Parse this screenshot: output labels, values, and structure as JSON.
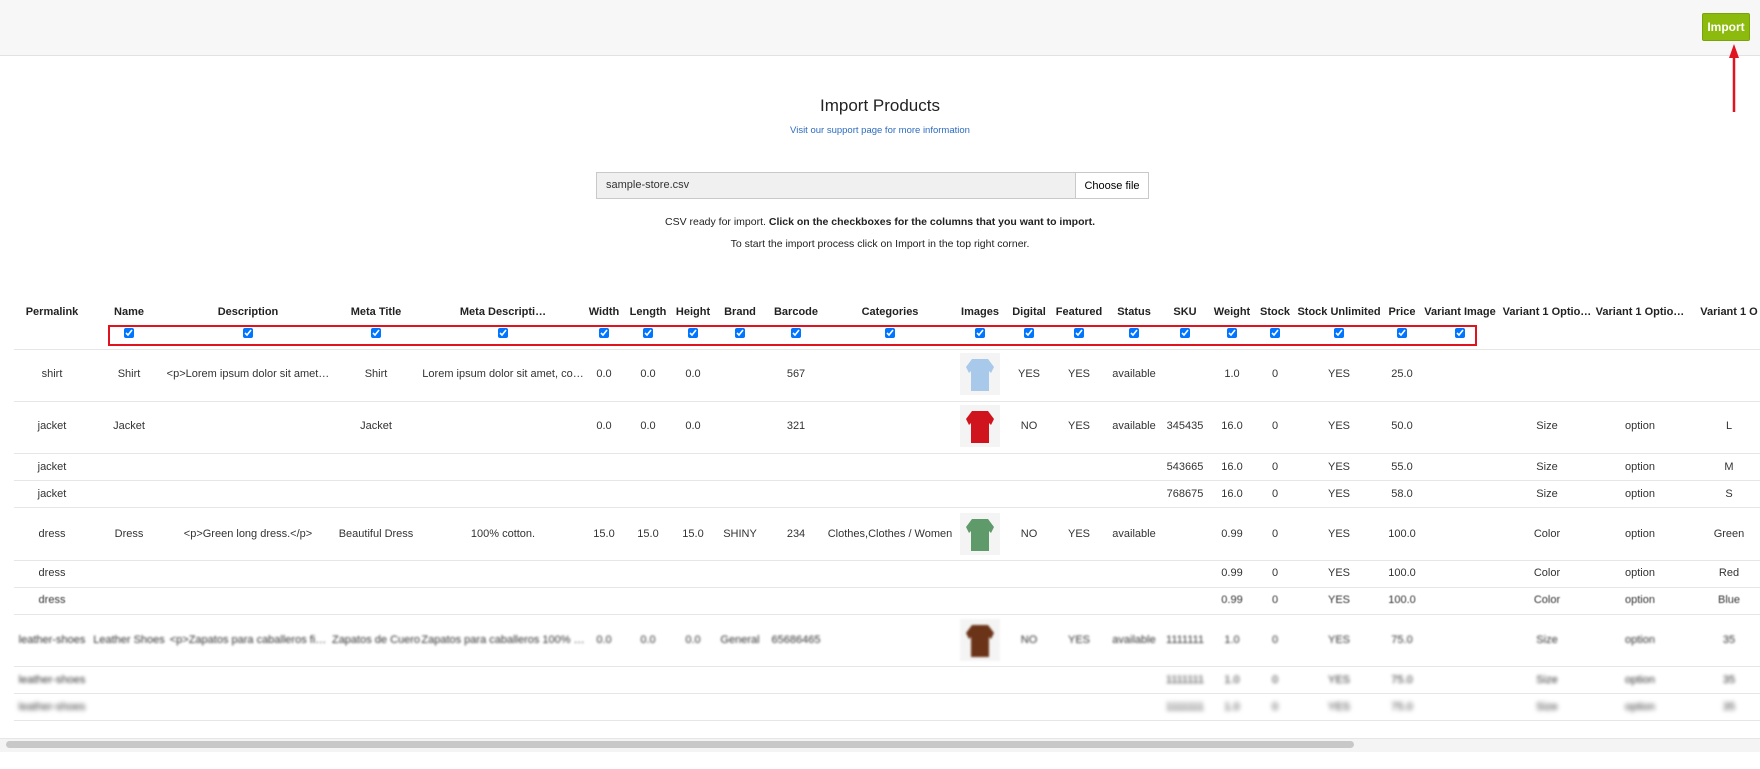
{
  "header": {
    "button": "Import"
  },
  "title": "Import Products",
  "support_link": "Visit our support page for more information",
  "file_input": {
    "filename": "sample-store.csv",
    "button": "Choose file"
  },
  "instructions": {
    "line1": {
      "text": "CSV ready for import.",
      "bold": "Click on the checkboxes for the columns that you want to import."
    },
    "line2": "To start the import process click on Import in the top right corner."
  },
  "table": {
    "columns": [
      {
        "label": "Permalink",
        "checkbox": false
      },
      {
        "label": "Name",
        "checkbox": true
      },
      {
        "label": "Description",
        "checkbox": true
      },
      {
        "label": "Meta Title",
        "checkbox": true
      },
      {
        "label": "Meta Descripti…",
        "checkbox": true
      },
      {
        "label": "Width",
        "checkbox": true
      },
      {
        "label": "Length",
        "checkbox": true
      },
      {
        "label": "Height",
        "checkbox": true
      },
      {
        "label": "Brand",
        "checkbox": true
      },
      {
        "label": "Barcode",
        "checkbox": true
      },
      {
        "label": "Categories",
        "checkbox": true
      },
      {
        "label": "Images",
        "checkbox": true
      },
      {
        "label": "Digital",
        "checkbox": true
      },
      {
        "label": "Featured",
        "checkbox": true
      },
      {
        "label": "Status",
        "checkbox": true
      },
      {
        "label": "SKU",
        "checkbox": true
      },
      {
        "label": "Weight",
        "checkbox": true
      },
      {
        "label": "Stock",
        "checkbox": true
      },
      {
        "label": "Stock Unlimited",
        "checkbox": true
      },
      {
        "label": "Price",
        "checkbox": true
      },
      {
        "label": "Variant Image",
        "checkbox": true
      },
      {
        "label": "Variant 1 Optio…",
        "checkbox": false
      },
      {
        "label": "Variant 1 Optio…",
        "checkbox": false
      },
      {
        "label": "Variant 1 O",
        "checkbox": false
      }
    ],
    "rows": [
      {
        "cells": [
          "shirt",
          "Shirt",
          "<p>Lorem ipsum dolor sit amet…",
          "Shirt",
          "Lorem ipsum dolor sit amet, co…",
          "0.0",
          "0.0",
          "0.0",
          null,
          "567",
          null,
          null,
          "YES",
          "YES",
          "available",
          null,
          "1.0",
          "0",
          "YES",
          "25.0",
          null,
          null,
          null,
          null
        ],
        "image": "#a8c9ea",
        "blur": 0
      },
      {
        "cells": [
          "jacket",
          "Jacket",
          null,
          "Jacket",
          null,
          "0.0",
          "0.0",
          "0.0",
          null,
          "321",
          null,
          null,
          "NO",
          "YES",
          "available",
          "345435",
          "16.0",
          "0",
          "YES",
          "50.0",
          null,
          "Size",
          "option",
          "L"
        ],
        "image": "#d0141e",
        "blur": 0
      },
      {
        "cells": [
          "jacket",
          null,
          null,
          null,
          null,
          null,
          null,
          null,
          null,
          null,
          null,
          null,
          null,
          null,
          null,
          "543665",
          "16.0",
          "0",
          "YES",
          "55.0",
          null,
          "Size",
          "option",
          "M"
        ],
        "blur": 0
      },
      {
        "cells": [
          "jacket",
          null,
          null,
          null,
          null,
          null,
          null,
          null,
          null,
          null,
          null,
          null,
          null,
          null,
          null,
          "768675",
          "16.0",
          "0",
          "YES",
          "58.0",
          null,
          "Size",
          "option",
          "S"
        ],
        "blur": 0
      },
      {
        "cells": [
          "dress",
          "Dress",
          "<p>Green long dress.</p>",
          "Beautiful Dress",
          "100% cotton.",
          "15.0",
          "15.0",
          "15.0",
          "SHINY",
          "234",
          "Clothes,Clothes / Women",
          null,
          "NO",
          "YES",
          "available",
          null,
          "0.99",
          "0",
          "YES",
          "100.0",
          null,
          "Color",
          "option",
          "Green"
        ],
        "image": "#5f9a6a",
        "blur": 0
      },
      {
        "cells": [
          "dress",
          null,
          null,
          null,
          null,
          null,
          null,
          null,
          null,
          null,
          null,
          null,
          null,
          null,
          null,
          null,
          "0.99",
          "0",
          "YES",
          "100.0",
          null,
          "Color",
          "option",
          "Red"
        ],
        "blur": 0.3
      },
      {
        "cells": [
          "dress",
          null,
          null,
          null,
          null,
          null,
          null,
          null,
          null,
          null,
          null,
          null,
          null,
          null,
          null,
          null,
          "0.99",
          "0",
          "YES",
          "100.0",
          null,
          "Color",
          "option",
          "Blue"
        ],
        "blur": 0.5
      },
      {
        "cells": [
          "leather-shoes",
          "Leather Shoes",
          "<p>Zapatos para caballeros fi…",
          "Zapatos de Cuero",
          "Zapatos para caballeros 100% …",
          "0.0",
          "0.0",
          "0.0",
          "General",
          "65686465",
          null,
          null,
          "NO",
          "YES",
          "available",
          "1111111",
          "1.0",
          "0",
          "YES",
          "75.0",
          null,
          "Size",
          "option",
          "35"
        ],
        "image": "#6b3418",
        "blur": 1
      },
      {
        "cells": [
          "leather-shoes",
          null,
          null,
          null,
          null,
          null,
          null,
          null,
          null,
          null,
          null,
          null,
          null,
          null,
          null,
          "1111111",
          "1.0",
          "0",
          "YES",
          "75.0",
          null,
          "Size",
          "option",
          "35"
        ],
        "blur": 1.5
      },
      {
        "cells": [
          "leather-shoes",
          null,
          null,
          null,
          null,
          null,
          null,
          null,
          null,
          null,
          null,
          null,
          null,
          null,
          null,
          "1111111",
          "1.0",
          "0",
          "YES",
          "75.0",
          null,
          "Size",
          "option",
          "35"
        ],
        "blur": 2.5
      }
    ]
  }
}
